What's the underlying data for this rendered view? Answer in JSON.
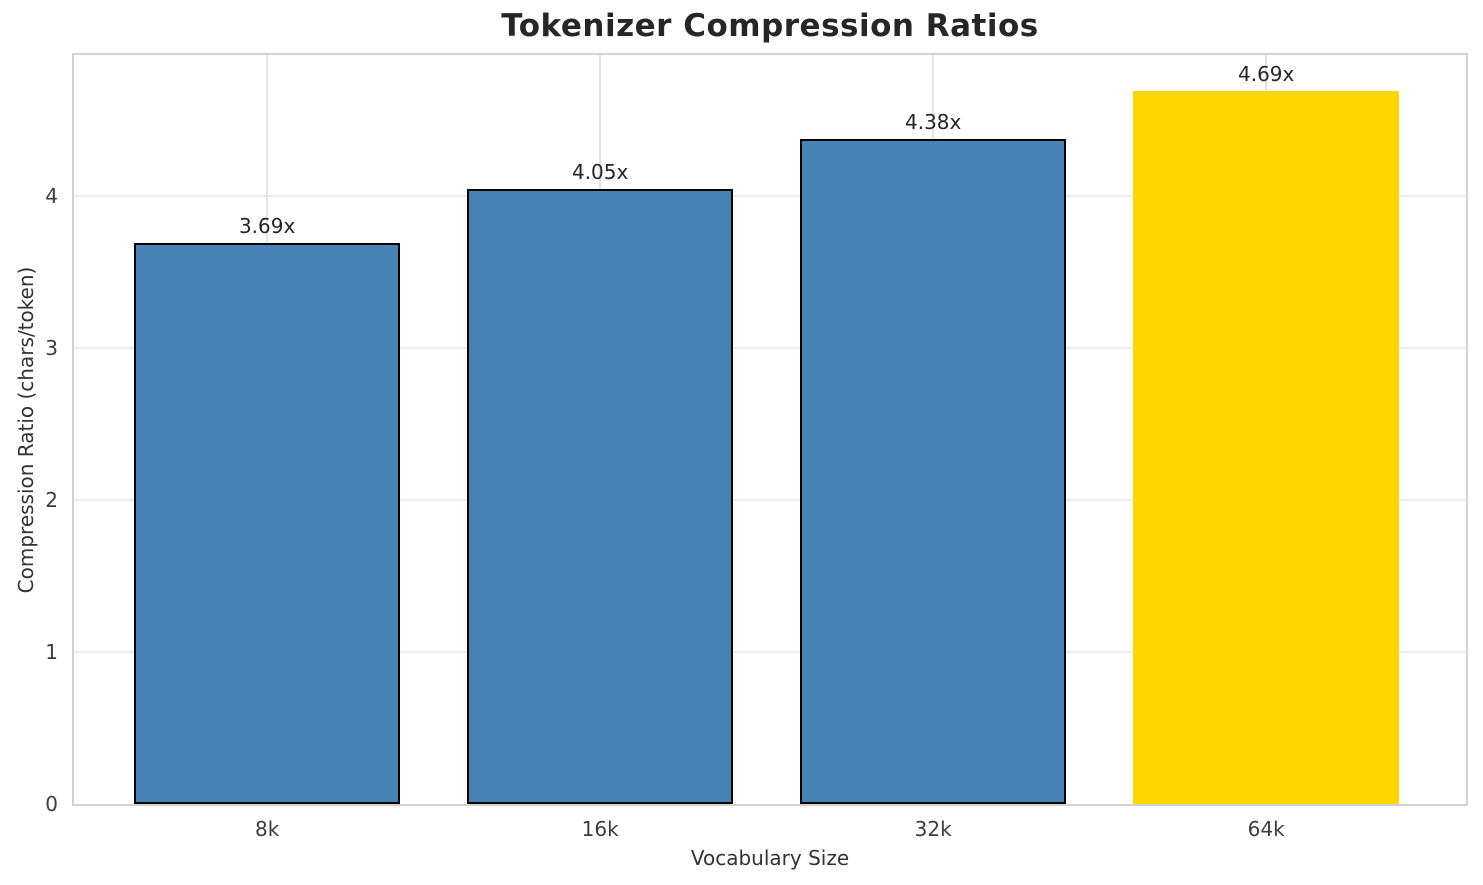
{
  "chart_data": {
    "type": "bar",
    "title": "Tokenizer Compression Ratios",
    "xlabel": "Vocabulary Size",
    "ylabel": "Compression Ratio (chars/token)",
    "categories": [
      "8k",
      "16k",
      "32k",
      "64k"
    ],
    "values": [
      3.69,
      4.05,
      4.38,
      4.69
    ],
    "bar_labels": [
      "3.69x",
      "4.05x",
      "4.38x",
      "4.69x"
    ],
    "bar_colors": [
      "#4682B4",
      "#4682B4",
      "#4682B4",
      "#FFD700"
    ],
    "bar_edge_colors": [
      "#000000",
      "#000000",
      "#000000",
      "none"
    ],
    "yticks": [
      0,
      1,
      2,
      3,
      4
    ],
    "ylim": [
      0,
      4.93
    ],
    "xlim": [
      -0.58,
      3.6
    ],
    "bar_width": 0.8,
    "grid": true,
    "legend": "none",
    "colors": {
      "grid": "#ececec",
      "spine": "#d2d2d2",
      "text": "#262626",
      "tick_text": "#3d3d3d"
    }
  }
}
